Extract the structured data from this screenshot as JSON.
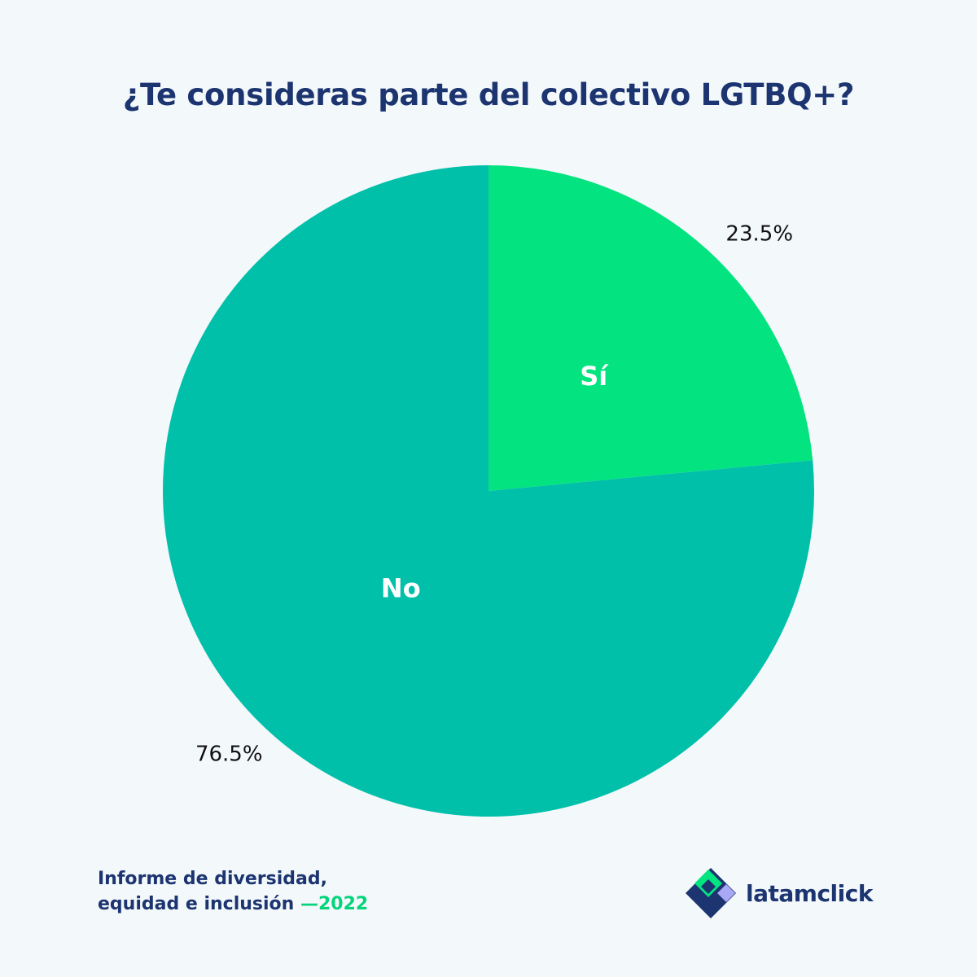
{
  "title": "¿Te consideras parte del colectivo LGTBQ+?",
  "footer": {
    "line1": "Informe de diversidad,",
    "line2": "equidad e inclusión",
    "year": "—2022"
  },
  "brand": {
    "name": "latamclick",
    "logo_icon": "latamclick-logo-icon"
  },
  "colors": {
    "si": "#03e37f",
    "no": "#00c0aa",
    "title": "#1c3470",
    "accent": "#05d47c",
    "background": "#f3f8fb"
  },
  "chart_data": {
    "type": "pie",
    "title": "¿Te consideras parte del colectivo LGTBQ+?",
    "slices": [
      {
        "label": "Sí",
        "value": 23.5,
        "value_label": "23.5%",
        "color": "#03e37f"
      },
      {
        "label": "No",
        "value": 76.5,
        "value_label": "76.5%",
        "color": "#00c0aa"
      }
    ],
    "start_angle": "top",
    "direction": "clockwise"
  }
}
